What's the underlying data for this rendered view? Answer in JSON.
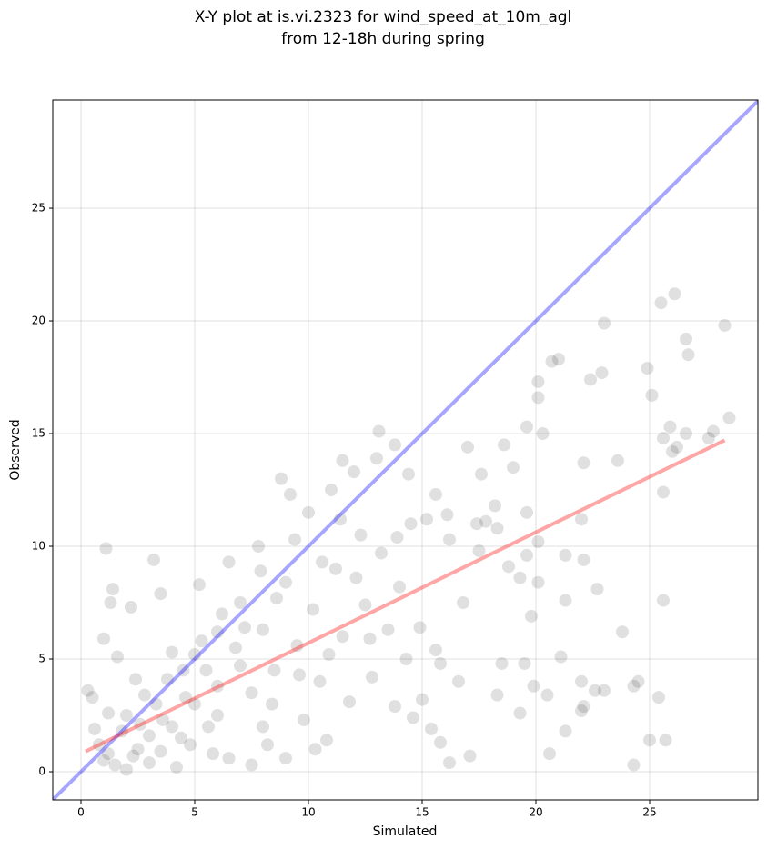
{
  "chart_data": {
    "type": "scatter",
    "title": [
      "X-Y plot at is.vi.2323 for wind_speed_at_10m_agl",
      "from 12-18h during spring"
    ],
    "xlabel": "Simulated",
    "ylabel": "Observed",
    "xlim": [
      -1.24,
      29.76
    ],
    "ylim": [
      -1.25,
      29.8
    ],
    "xticks": [
      0,
      5,
      10,
      15,
      20,
      25
    ],
    "yticks": [
      0,
      5,
      10,
      15,
      20,
      25
    ],
    "grid": true,
    "color": "#000000",
    "x": [
      26.1,
      25.5,
      23,
      28.3,
      26.6,
      26.7,
      21,
      20.7,
      22.9,
      22.4,
      24.9,
      20.1,
      20.1,
      25.1,
      28.5,
      25.9,
      27.8,
      19.6,
      20.3,
      26.6,
      25.6,
      27.6,
      26.2,
      26,
      17,
      18.6,
      23.6,
      22.1,
      19,
      17.6,
      25.6,
      19.6,
      22,
      18.3,
      17.8,
      18.2,
      20.1,
      19.6,
      21.3,
      22.1,
      22.7,
      21.3,
      25.6,
      23.8,
      21.1,
      19.5,
      18.5,
      22,
      24.5,
      24.3,
      23,
      22.6,
      25.4,
      20.5,
      18.3,
      22.1,
      22,
      19.3,
      21.3,
      25,
      25.7,
      20.6,
      24.3,
      17.1,
      16.2,
      19.8,
      19.9,
      20.1,
      19.3,
      18.8,
      17.4,
      17.5,
      16.8,
      16.6,
      15.8,
      15.6,
      14.4,
      13.8,
      13.1,
      15.6,
      16.1,
      16.2,
      15.2,
      1,
      1.2,
      1.5,
      0.8,
      1.1,
      1.4,
      1.3,
      2.2,
      0.3,
      0.5,
      1,
      1.6,
      2,
      2.5,
      3,
      3.5,
      2.8,
      3.2,
      3.5,
      4,
      4.5,
      4,
      4.8,
      5,
      5.5,
      5.2,
      6,
      6.5,
      6,
      5.8,
      6.8,
      7,
      7.5,
      7.8,
      8,
      8.5,
      8.2,
      8.8,
      9,
      9.2,
      9.5,
      9.8,
      10,
      10.2,
      10.5,
      10.8,
      11,
      11.2,
      11.5,
      11.8,
      12,
      12.3,
      12.5,
      12.8,
      13,
      13.2,
      13.5,
      13.8,
      14,
      14.3,
      14.6,
      14.9,
      15,
      15.4,
      15.8,
      11.5,
      10.3,
      9,
      7.5,
      6.5,
      4.2,
      2,
      1.8,
      2.6,
      3.3,
      3.8,
      4.6,
      5.3,
      6.2,
      7.2,
      7.9,
      8.6,
      9.4,
      10.6,
      11.4,
      12.1,
      5.6,
      4.4,
      3,
      2.3,
      1.2,
      0.6,
      7,
      8.4,
      9.6,
      10.9,
      12.7,
      13.9,
      14.5,
      6,
      5,
      3.6,
      2.4,
      8
    ],
    "y": [
      21.2,
      20.8,
      19.9,
      19.8,
      19.2,
      18.5,
      18.3,
      18.2,
      17.7,
      17.4,
      17.9,
      17.3,
      16.6,
      16.7,
      15.7,
      15.3,
      15.1,
      15.3,
      15,
      15,
      14.8,
      14.8,
      14.4,
      14.2,
      14.4,
      14.5,
      13.8,
      13.7,
      13.5,
      13.2,
      12.4,
      11.5,
      11.2,
      10.8,
      11.1,
      11.8,
      10.2,
      9.6,
      9.6,
      9.4,
      8.1,
      7.6,
      7.6,
      6.2,
      5.1,
      4.8,
      4.8,
      4,
      4,
      3.8,
      3.6,
      3.6,
      3.3,
      3.4,
      3.4,
      2.9,
      2.7,
      2.6,
      1.8,
      1.4,
      1.4,
      0.8,
      0.3,
      0.7,
      0.4,
      6.9,
      3.8,
      8.4,
      8.6,
      9.1,
      11,
      9.8,
      7.5,
      4,
      4.8,
      5.4,
      13.2,
      14.5,
      15.1,
      12.3,
      11.4,
      10.3,
      11.2,
      0.5,
      0.8,
      0.3,
      1.2,
      9.9,
      8.1,
      7.5,
      7.3,
      3.6,
      3.3,
      5.9,
      5.1,
      2.5,
      1,
      0.4,
      0.9,
      3.4,
      9.4,
      7.9,
      5.3,
      4.5,
      2,
      1.2,
      3,
      4.5,
      8.3,
      6.2,
      9.3,
      2.5,
      0.8,
      5.5,
      7.5,
      3.5,
      10,
      6.3,
      4.5,
      1.2,
      13,
      8.4,
      12.3,
      5.6,
      2.3,
      11.5,
      7.2,
      4,
      1.4,
      12.5,
      9,
      6,
      3.1,
      13.3,
      10.5,
      7.4,
      4.2,
      13.9,
      9.7,
      6.3,
      2.9,
      8.2,
      5,
      2.4,
      6.4,
      3.2,
      1.9,
      1.3,
      13.8,
      1,
      0.6,
      0.3,
      0.6,
      0.2,
      0.1,
      1.8,
      2.1,
      3,
      4.1,
      3.3,
      5.8,
      7,
      6.4,
      8.9,
      7.7,
      10.3,
      9.3,
      11.2,
      8.6,
      2,
      1.5,
      1.6,
      0.7,
      2.6,
      1.9,
      4.7,
      3,
      4.3,
      5.2,
      5.9,
      10.4,
      11,
      3.8,
      5.2,
      2.3,
      4.1,
      2
    ],
    "reference_lines": [
      {
        "color": "#0000ff",
        "x": [
          -1.24,
          29.76
        ],
        "y": [
          -1.24,
          29.76
        ]
      },
      {
        "color": "#ff0000",
        "x": [
          0.2,
          28.3
        ],
        "y": [
          0.9,
          14.7
        ]
      }
    ]
  }
}
